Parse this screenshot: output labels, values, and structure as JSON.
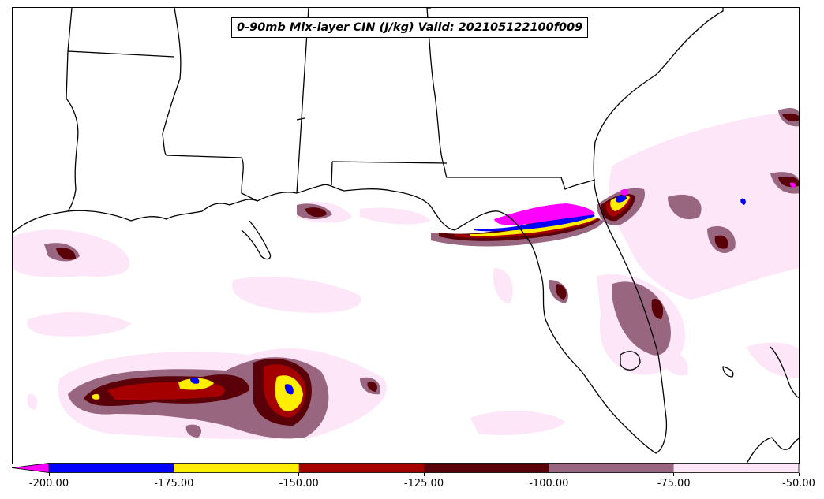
{
  "title": "0-90mb Mix-layer CIN (J/kg) Valid: 202105122100f009",
  "colorbar": {
    "ticks": [
      "-200.00",
      "-175.00",
      "-150.00",
      "-125.00",
      "-100.00",
      "-75.00",
      "-50.00"
    ],
    "tick_values": [
      -200,
      -175,
      -150,
      -125,
      -100,
      -75,
      -50
    ],
    "bins": [
      {
        "from": -200,
        "to": -175,
        "color": "#0000ff"
      },
      {
        "from": -175,
        "to": -150,
        "color": "#ffee00"
      },
      {
        "from": -150,
        "to": -125,
        "color": "#a50000"
      },
      {
        "from": -125,
        "to": -100,
        "color": "#5a0008"
      },
      {
        "from": -100,
        "to": -75,
        "color": "#996680"
      },
      {
        "from": -75,
        "to": -50,
        "color": "#fde6f8"
      }
    ],
    "under_color": "#ff00ff",
    "extend": "min"
  }
}
